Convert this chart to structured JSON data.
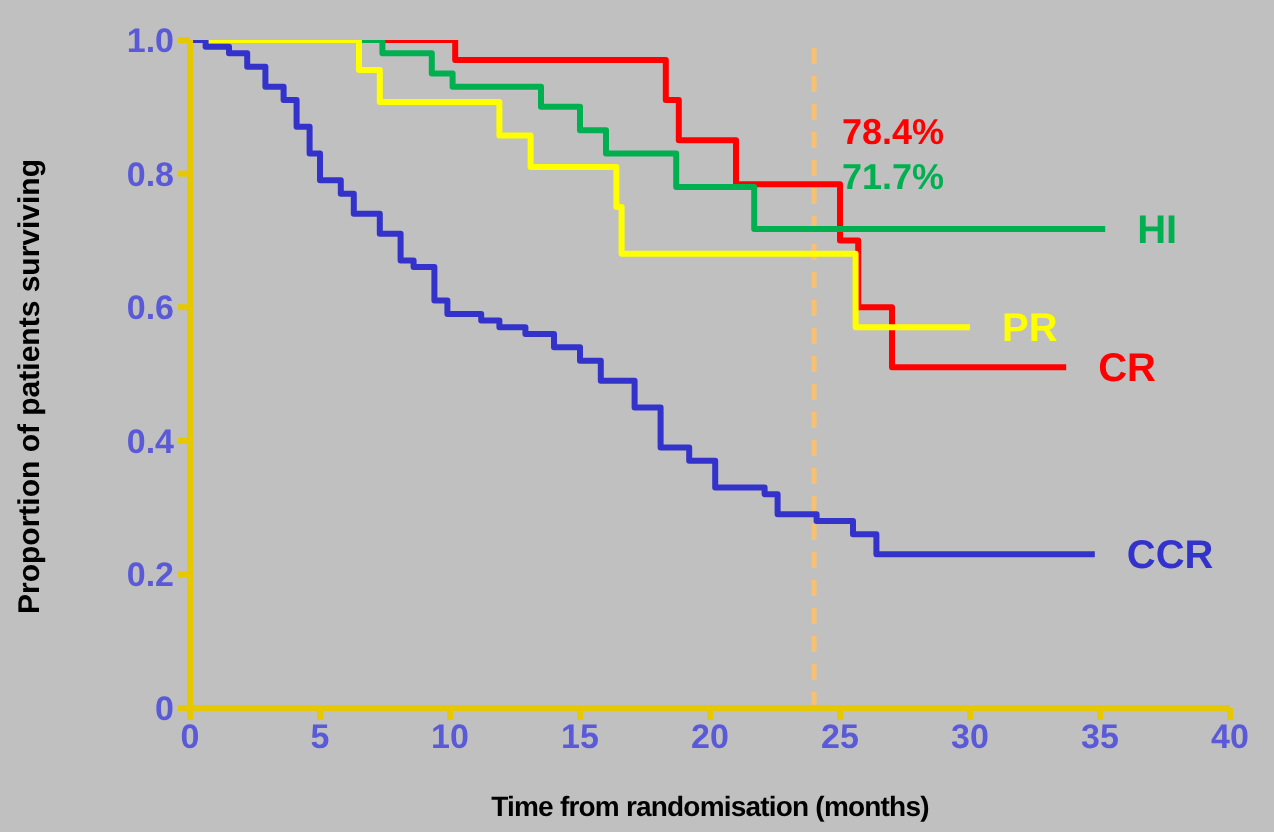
{
  "chart_data": {
    "type": "step",
    "xlabel": "Time from randomisation (months)",
    "ylabel": "Proportion of patients surviving",
    "xlim": [
      0,
      40
    ],
    "xticks": [
      0,
      5,
      10,
      15,
      20,
      25,
      30,
      35,
      40
    ],
    "ylim": [
      0,
      1
    ],
    "yticks": [
      0,
      0.2,
      0.4,
      0.6,
      0.8,
      {
        "value": 1,
        "label": "1.0"
      }
    ],
    "grid": false,
    "legend": false,
    "marker": "none",
    "line_style": "solid",
    "series": [
      {
        "name": "CR",
        "color": "#ff0000",
        "x": [
          0,
          10.2,
          18.3,
          18.8,
          21.0,
          25.0,
          25.7,
          27.0,
          33.7
        ],
        "values": [
          1.0,
          0.97,
          0.91,
          0.85,
          0.784,
          0.7,
          0.6,
          0.51,
          0.51
        ]
      },
      {
        "name": "HI",
        "color": "#00b050",
        "x": [
          0,
          7.4,
          9.3,
          10.1,
          13.5,
          15.0,
          16.0,
          18.7,
          21.7,
          35.2
        ],
        "values": [
          1.0,
          0.98,
          0.95,
          0.93,
          0.9,
          0.865,
          0.83,
          0.78,
          0.717,
          0.717
        ]
      },
      {
        "name": "PR",
        "color": "#ffff00",
        "x": [
          0,
          6.5,
          7.3,
          11.9,
          13.1,
          16.4,
          16.6,
          25.6,
          30.0
        ],
        "values": [
          1.0,
          0.955,
          0.907,
          0.857,
          0.81,
          0.75,
          0.68,
          0.57,
          0.57
        ]
      },
      {
        "name": "CCR",
        "color": "#3333cc",
        "x": [
          0,
          0.6,
          1.5,
          2.2,
          2.9,
          3.6,
          4.1,
          4.6,
          5.0,
          5.8,
          6.3,
          7.3,
          8.1,
          8.6,
          9.4,
          9.9,
          11.2,
          11.9,
          12.9,
          14.0,
          15.0,
          15.8,
          17.1,
          18.1,
          19.2,
          20.2,
          22.1,
          22.6,
          24.1,
          25.5,
          26.4,
          34.8
        ],
        "values": [
          1.0,
          0.99,
          0.98,
          0.96,
          0.93,
          0.91,
          0.87,
          0.83,
          0.79,
          0.77,
          0.74,
          0.71,
          0.67,
          0.66,
          0.61,
          0.59,
          0.58,
          0.57,
          0.56,
          0.54,
          0.52,
          0.49,
          0.45,
          0.39,
          0.37,
          0.33,
          0.32,
          0.29,
          0.28,
          0.26,
          0.23,
          0.23
        ]
      }
    ],
    "ref_lines": [
      {
        "axis": "x",
        "value": 24,
        "color": "#f8c070",
        "line_style": "dashed"
      }
    ],
    "annotations": [
      {
        "text": "78.4%",
        "x": 24,
        "y": 0.784
      },
      {
        "text": "71.7%",
        "x": 24,
        "y": 0.717
      }
    ]
  }
}
